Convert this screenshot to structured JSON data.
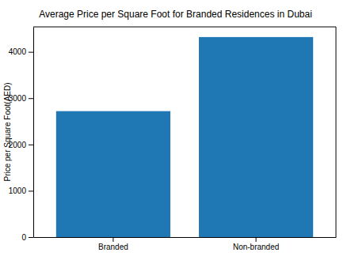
{
  "chart_data": {
    "type": "bar",
    "title": "Average Price per Square Foot for Branded Residences in Dubai",
    "y_label": "Price per Square Foot(AED)",
    "categories": [
      "Branded",
      "Non-branded"
    ],
    "values": [
      2720,
      4320
    ],
    "color": "#1f77b4",
    "ylim": [
      0,
      4540
    ],
    "yticks": [
      0,
      1000,
      2000,
      3000,
      4000
    ],
    "grid": false
  }
}
